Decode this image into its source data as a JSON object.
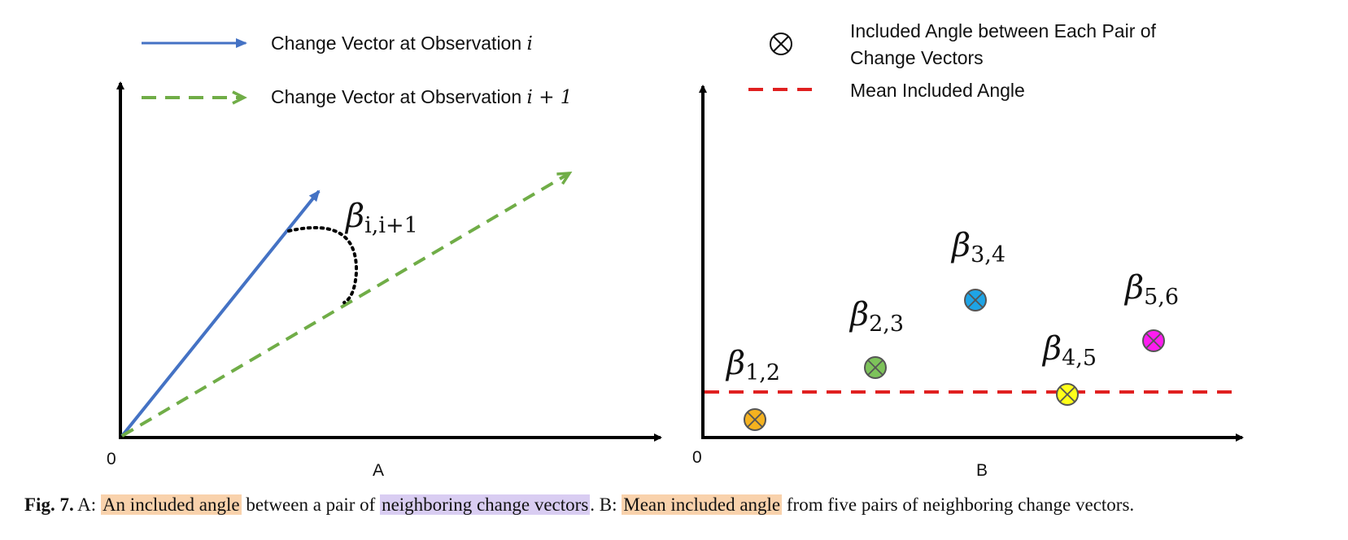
{
  "legend": {
    "vector_i": {
      "text": "Change Vector at Observation ",
      "var": "i",
      "color": "#4472c4"
    },
    "vector_i1": {
      "text": "Change Vector at Observation ",
      "var": "i + 1",
      "color": "#70ad47"
    },
    "included_angle": {
      "line1": "Included Angle between Each Pair of",
      "line2": "Change Vectors"
    },
    "mean_angle": {
      "text": "Mean Included Angle",
      "color": "#e02020"
    }
  },
  "panel_a": {
    "origin_label": "0",
    "panel_label": "A",
    "angle_label": {
      "symbol": "β",
      "subscript": "i,i+1"
    }
  },
  "panel_b": {
    "origin_label": "0",
    "panel_label": "B",
    "points": [
      {
        "symbol": "β",
        "subscript": "1,2",
        "color": "#f5b21f"
      },
      {
        "symbol": "β",
        "subscript": "2,3",
        "color": "#7dc35a"
      },
      {
        "symbol": "β",
        "subscript": "3,4",
        "color": "#1ea4e6"
      },
      {
        "symbol": "β",
        "subscript": "4,5",
        "color": "#ffff1a"
      },
      {
        "symbol": "β",
        "subscript": "5,6",
        "color": "#ff1cf0"
      }
    ]
  },
  "caption": {
    "label": "Fig. 7.",
    "part1": " A: ",
    "hl1": "An included angle",
    "part2": " between a pair of ",
    "hl2": "neighboring change vectors",
    "part3": ". B: ",
    "hl3": "Mean included angle",
    "part4": " from five pairs of neighboring change vectors."
  }
}
